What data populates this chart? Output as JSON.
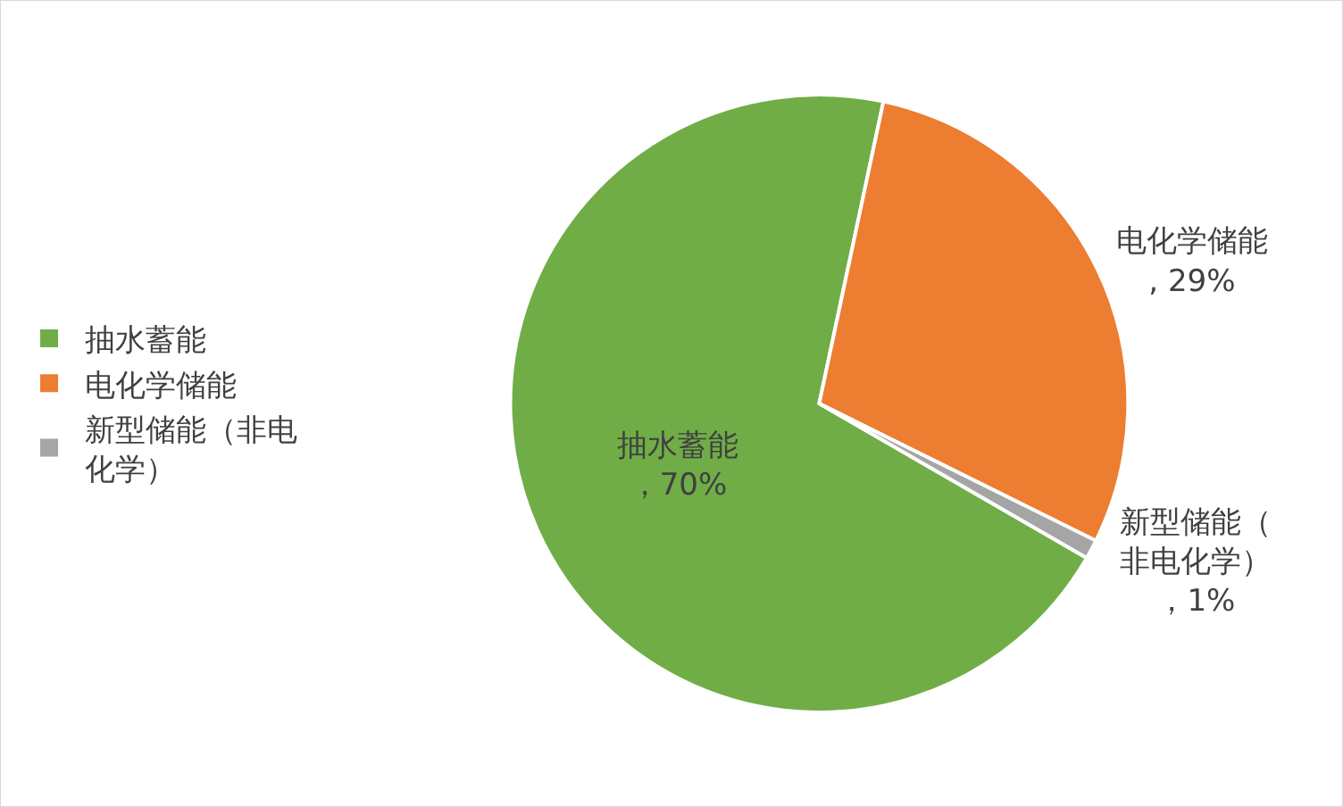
{
  "chart_data": {
    "type": "pie",
    "categories": [
      "抽水蓄能",
      "电化学储能",
      "新型储能（非电化学）"
    ],
    "values": [
      70,
      29,
      1
    ],
    "colors": [
      "#70ad47",
      "#ed7d31",
      "#a5a5a5"
    ],
    "value_labels": [
      "抽水蓄能，70%",
      "电化学储能, 29%",
      "新型储能（非电化学），1%"
    ],
    "legend": "left"
  }
}
